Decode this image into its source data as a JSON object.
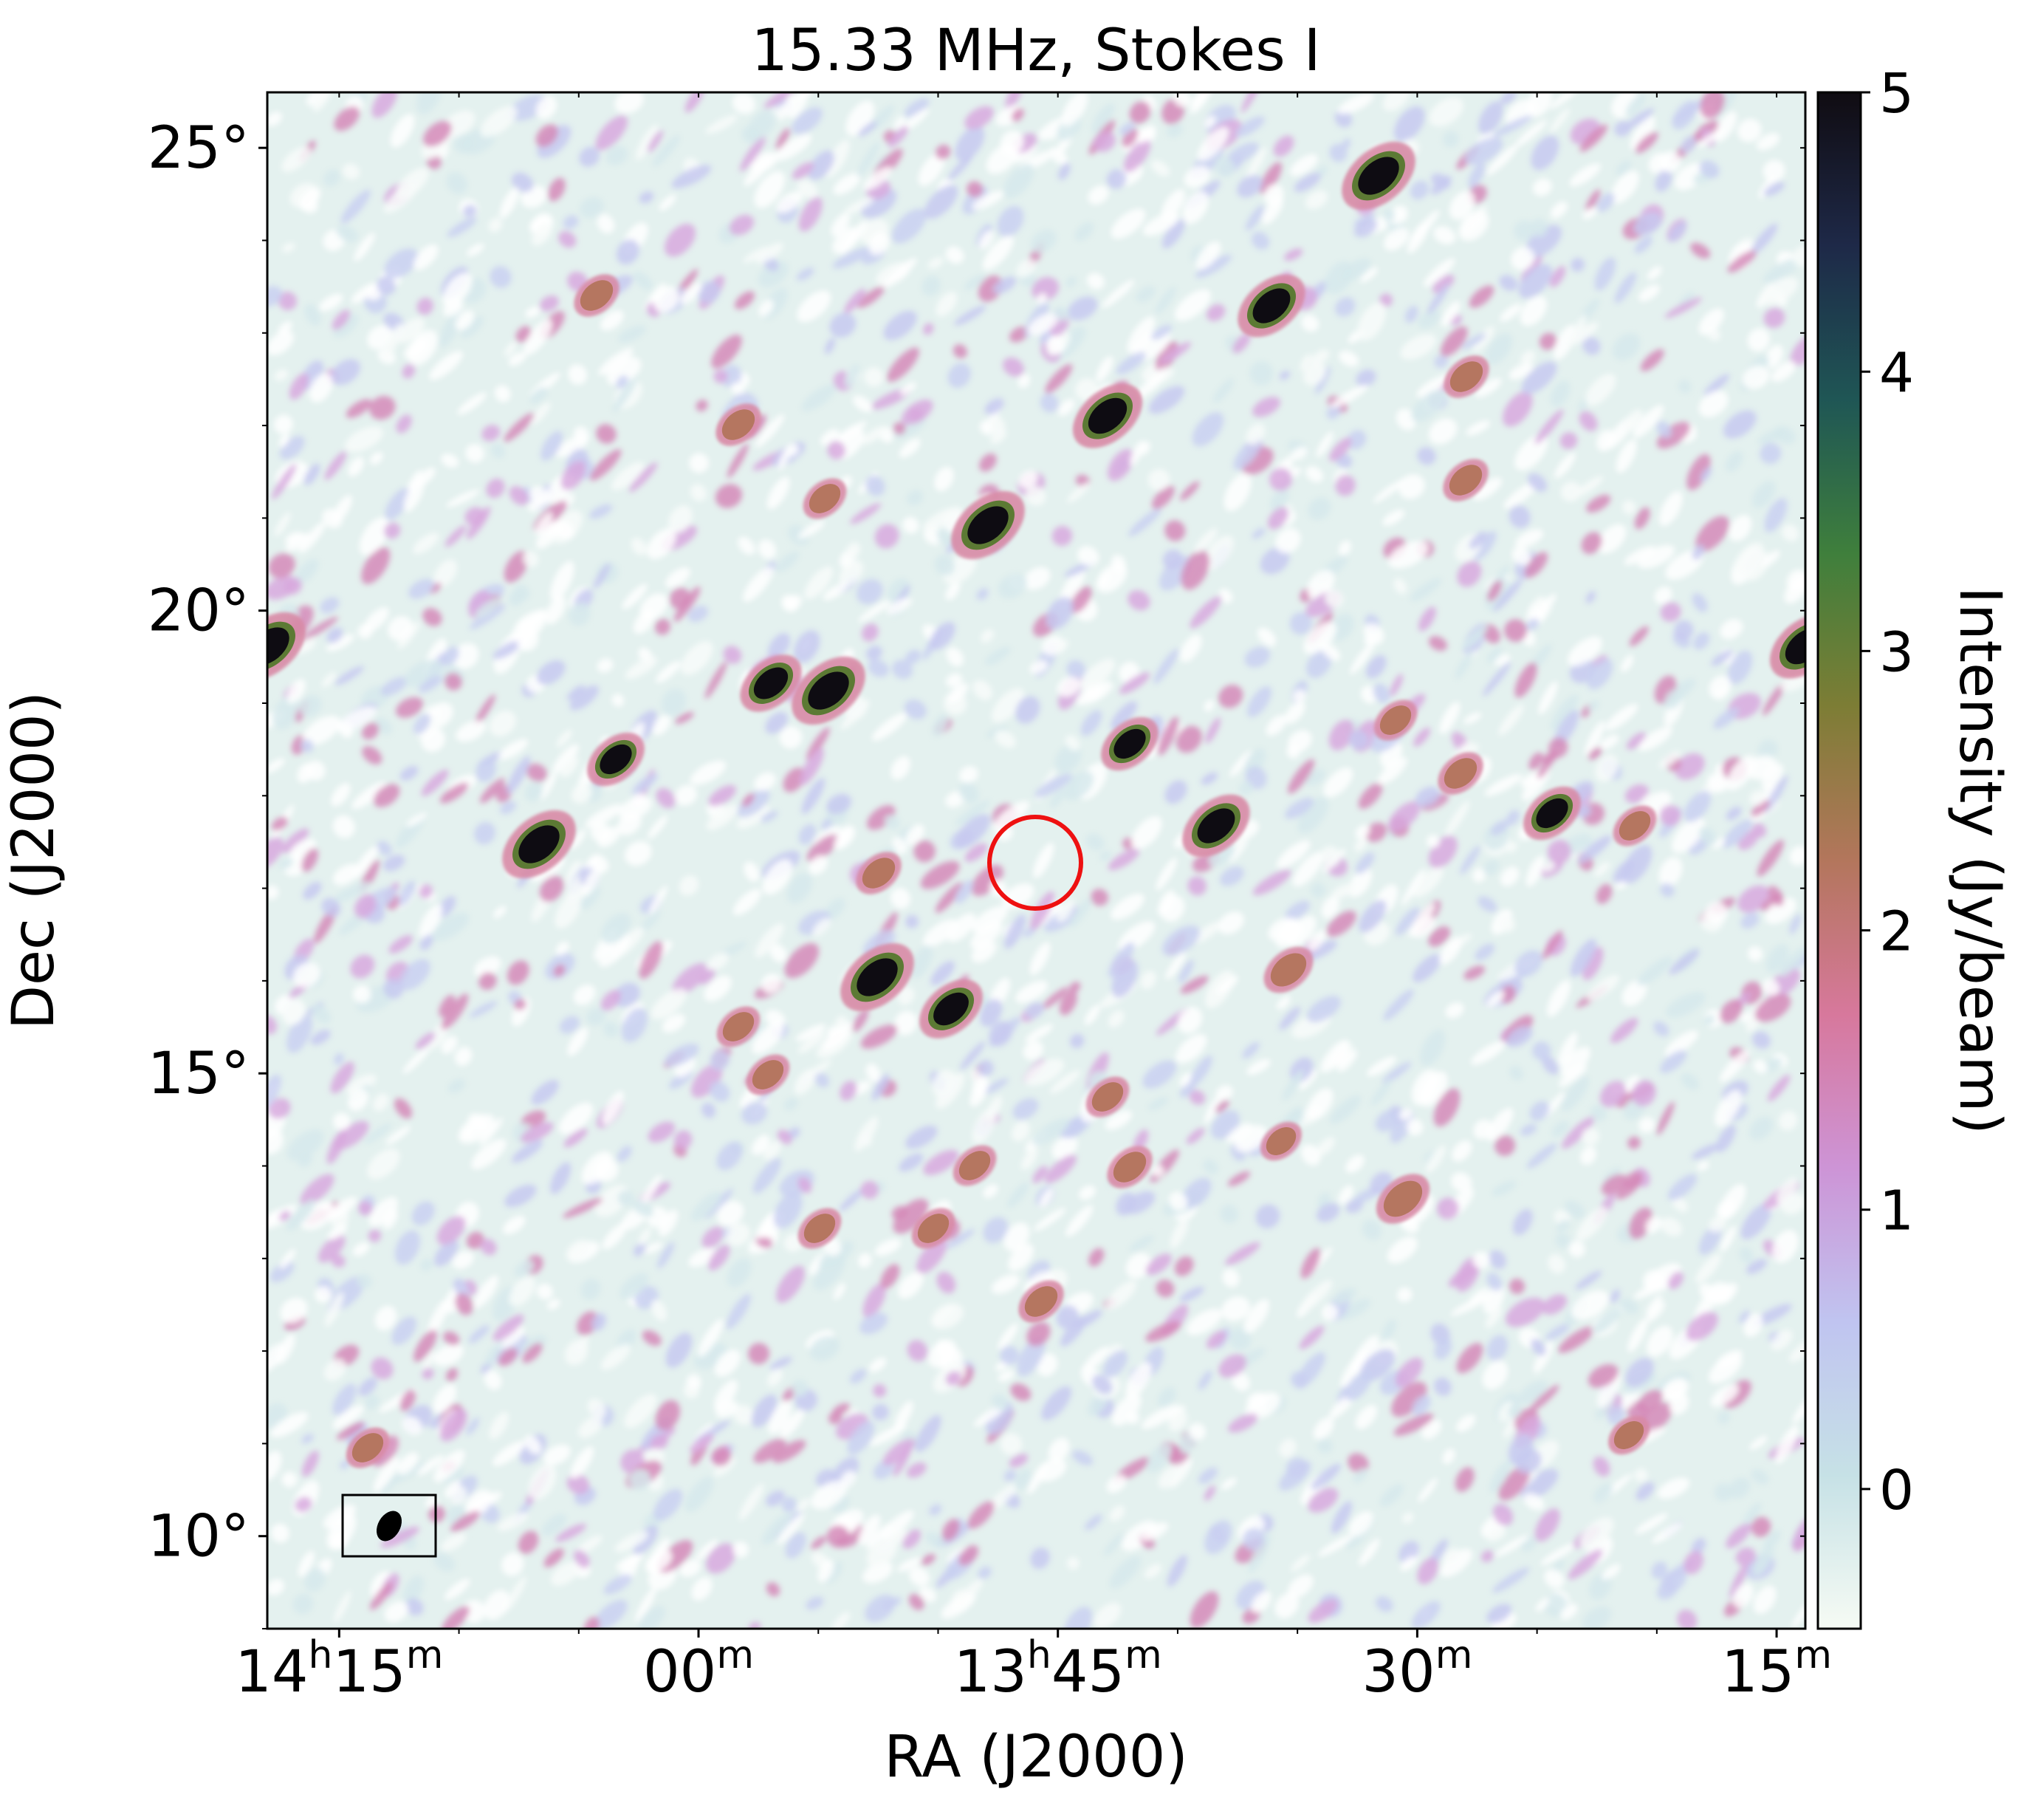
{
  "title": "15.33 MHz, Stokes I",
  "axes": {
    "xlabel": "RA (J2000)",
    "ylabel": "Dec (J2000)",
    "xticks": [
      {
        "h": "14",
        "hu": "h",
        "m": "15",
        "mu": "m",
        "ra_hours": 14.25
      },
      {
        "h": "",
        "hu": "",
        "m": "00",
        "mu": "m",
        "ra_hours": 14.0
      },
      {
        "h": "13",
        "hu": "h",
        "m": "45",
        "mu": "m",
        "ra_hours": 13.75
      },
      {
        "h": "",
        "hu": "",
        "m": "30",
        "mu": "m",
        "ra_hours": 13.5
      },
      {
        "h": "",
        "hu": "",
        "m": "15",
        "mu": "m",
        "ra_hours": 13.25
      }
    ],
    "yticks": [
      {
        "label": "25°",
        "dec": 25
      },
      {
        "label": "20°",
        "dec": 20
      },
      {
        "label": "15°",
        "dec": 15
      },
      {
        "label": "10°",
        "dec": 10
      }
    ],
    "ra_range_hours": [
      14.3,
      13.23
    ],
    "dec_range_deg": [
      9.0,
      25.6
    ]
  },
  "colorbar": {
    "label": "Intensity (Jy/beam)",
    "ticks": [
      "0",
      "1",
      "2",
      "3",
      "4",
      "5"
    ],
    "range": [
      -0.5,
      5
    ],
    "colormap": "cubehelix_r",
    "stops": [
      "#f6fbf4",
      "#c6e1e6",
      "#c0c4f0",
      "#cd94d6",
      "#d7789c",
      "#b3765c",
      "#7d7d35",
      "#3f7f3c",
      "#1f5655",
      "#1e2948",
      "#100c12"
    ]
  },
  "overlays": {
    "circle_color": "#ee1111",
    "beam_color": "#000000"
  }
}
